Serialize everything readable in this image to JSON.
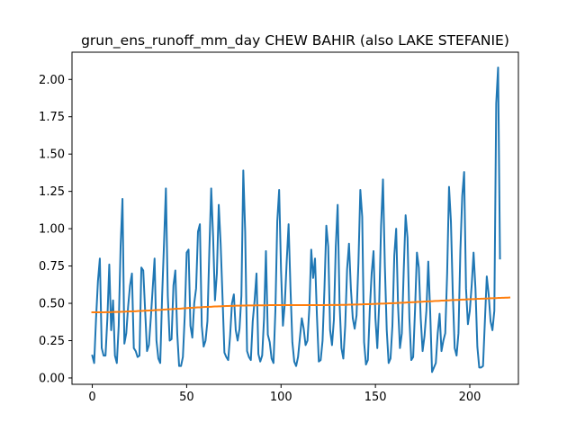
{
  "chart_data": {
    "type": "line",
    "title": "grun_ens_runoff_mm_day CHEW BAHIR (also LAKE STEFANIE)",
    "xlabel": "",
    "ylabel": "",
    "xlim": [
      -10.75,
      225.75
    ],
    "ylim": [
      -0.0425,
      2.1825
    ],
    "xticks": [
      0,
      50,
      100,
      150,
      200
    ],
    "yticks": [
      0.0,
      0.25,
      0.5,
      0.75,
      1.0,
      1.25,
      1.5,
      1.75,
      2.0
    ],
    "xtick_labels": [
      "0",
      "50",
      "100",
      "150",
      "200"
    ],
    "ytick_labels": [
      "0.00",
      "0.25",
      "0.50",
      "0.75",
      "1.00",
      "1.25",
      "1.50",
      "1.75",
      "2.00"
    ],
    "grid": false,
    "legend": "none",
    "series": [
      {
        "color": "#1f77b4",
        "x_start": 0,
        "x_step": 1,
        "values": [
          0.15,
          0.1,
          0.4,
          0.65,
          0.8,
          0.2,
          0.15,
          0.15,
          0.4,
          0.76,
          0.32,
          0.52,
          0.15,
          0.1,
          0.35,
          0.88,
          1.2,
          0.23,
          0.3,
          0.48,
          0.62,
          0.7,
          0.2,
          0.18,
          0.14,
          0.15,
          0.74,
          0.72,
          0.45,
          0.18,
          0.22,
          0.4,
          0.6,
          0.8,
          0.25,
          0.13,
          0.1,
          0.55,
          0.9,
          1.27,
          0.55,
          0.25,
          0.26,
          0.62,
          0.72,
          0.3,
          0.08,
          0.08,
          0.14,
          0.42,
          0.84,
          0.86,
          0.35,
          0.27,
          0.5,
          0.6,
          0.98,
          1.03,
          0.35,
          0.21,
          0.25,
          0.38,
          0.85,
          1.27,
          0.95,
          0.52,
          0.7,
          1.16,
          0.9,
          0.54,
          0.17,
          0.14,
          0.12,
          0.28,
          0.5,
          0.56,
          0.32,
          0.25,
          0.33,
          0.55,
          1.39,
          0.98,
          0.18,
          0.14,
          0.12,
          0.38,
          0.52,
          0.7,
          0.16,
          0.11,
          0.15,
          0.4,
          0.85,
          0.29,
          0.24,
          0.13,
          0.1,
          0.45,
          1.05,
          1.26,
          0.72,
          0.35,
          0.5,
          0.78,
          1.03,
          0.6,
          0.24,
          0.11,
          0.08,
          0.14,
          0.27,
          0.4,
          0.33,
          0.22,
          0.25,
          0.47,
          0.86,
          0.67,
          0.8,
          0.42,
          0.11,
          0.12,
          0.25,
          0.6,
          1.02,
          0.88,
          0.32,
          0.22,
          0.39,
          0.88,
          1.16,
          0.5,
          0.2,
          0.13,
          0.35,
          0.73,
          0.9,
          0.6,
          0.4,
          0.33,
          0.42,
          0.77,
          1.26,
          1.08,
          0.24,
          0.09,
          0.12,
          0.45,
          0.7,
          0.85,
          0.4,
          0.2,
          0.5,
          1.02,
          1.33,
          0.75,
          0.32,
          0.1,
          0.13,
          0.35,
          0.82,
          1.0,
          0.48,
          0.2,
          0.3,
          0.72,
          1.09,
          0.94,
          0.4,
          0.12,
          0.14,
          0.46,
          0.84,
          0.74,
          0.4,
          0.18,
          0.28,
          0.45,
          0.78,
          0.45,
          0.04,
          0.07,
          0.1,
          0.3,
          0.43,
          0.18,
          0.25,
          0.3,
          0.7,
          1.28,
          1.05,
          0.56,
          0.2,
          0.15,
          0.3,
          0.85,
          1.22,
          1.38,
          0.6,
          0.36,
          0.45,
          0.62,
          0.84,
          0.6,
          0.21,
          0.07,
          0.07,
          0.08,
          0.38,
          0.68,
          0.56,
          0.38,
          0.32,
          0.45,
          1.84,
          2.08,
          0.8
        ]
      },
      {
        "color": "#ff7f0e",
        "x_start": 0,
        "x_step": 1,
        "values": [
          0.44,
          0.44,
          0.44,
          0.44,
          0.44,
          0.44,
          0.44,
          0.441,
          0.441,
          0.441,
          0.441,
          0.442,
          0.442,
          0.442,
          0.443,
          0.443,
          0.444,
          0.444,
          0.445,
          0.445,
          0.446,
          0.446,
          0.447,
          0.447,
          0.448,
          0.449,
          0.449,
          0.45,
          0.451,
          0.451,
          0.452,
          0.453,
          0.453,
          0.454,
          0.455,
          0.456,
          0.456,
          0.457,
          0.458,
          0.459,
          0.46,
          0.46,
          0.461,
          0.462,
          0.463,
          0.464,
          0.464,
          0.465,
          0.466,
          0.467,
          0.468,
          0.469,
          0.469,
          0.47,
          0.471,
          0.472,
          0.473,
          0.473,
          0.474,
          0.475,
          0.476,
          0.476,
          0.477,
          0.477,
          0.478,
          0.479,
          0.479,
          0.48,
          0.48,
          0.481,
          0.481,
          0.482,
          0.482,
          0.483,
          0.483,
          0.483,
          0.484,
          0.484,
          0.484,
          0.485,
          0.485,
          0.485,
          0.486,
          0.486,
          0.486,
          0.486,
          0.486,
          0.487,
          0.487,
          0.487,
          0.487,
          0.487,
          0.487,
          0.487,
          0.488,
          0.488,
          0.488,
          0.488,
          0.488,
          0.488,
          0.488,
          0.488,
          0.488,
          0.488,
          0.488,
          0.488,
          0.488,
          0.488,
          0.488,
          0.488,
          0.488,
          0.488,
          0.488,
          0.488,
          0.488,
          0.488,
          0.488,
          0.488,
          0.488,
          0.488,
          0.488,
          0.488,
          0.488,
          0.488,
          0.488,
          0.489,
          0.489,
          0.489,
          0.489,
          0.489,
          0.489,
          0.489,
          0.49,
          0.49,
          0.49,
          0.49,
          0.491,
          0.491,
          0.491,
          0.492,
          0.492,
          0.492,
          0.493,
          0.493,
          0.494,
          0.494,
          0.494,
          0.495,
          0.495,
          0.496,
          0.496,
          0.497,
          0.497,
          0.498,
          0.498,
          0.499,
          0.499,
          0.5,
          0.5,
          0.501,
          0.501,
          0.502,
          0.503,
          0.503,
          0.504,
          0.504,
          0.505,
          0.506,
          0.506,
          0.507,
          0.508,
          0.508,
          0.509,
          0.51,
          0.51,
          0.511,
          0.512,
          0.512,
          0.513,
          0.514,
          0.514,
          0.515,
          0.516,
          0.516,
          0.517,
          0.518,
          0.518,
          0.519,
          0.52,
          0.52,
          0.521,
          0.522,
          0.522,
          0.523,
          0.523,
          0.524,
          0.525,
          0.525,
          0.526,
          0.527,
          0.527,
          0.528,
          0.528,
          0.529,
          0.53,
          0.53,
          0.531,
          0.531,
          0.532,
          0.532,
          0.533,
          0.534,
          0.534,
          0.535,
          0.535,
          0.536,
          0.536,
          0.537,
          0.537,
          0.538,
          0.538,
          0.539
        ]
      }
    ]
  }
}
